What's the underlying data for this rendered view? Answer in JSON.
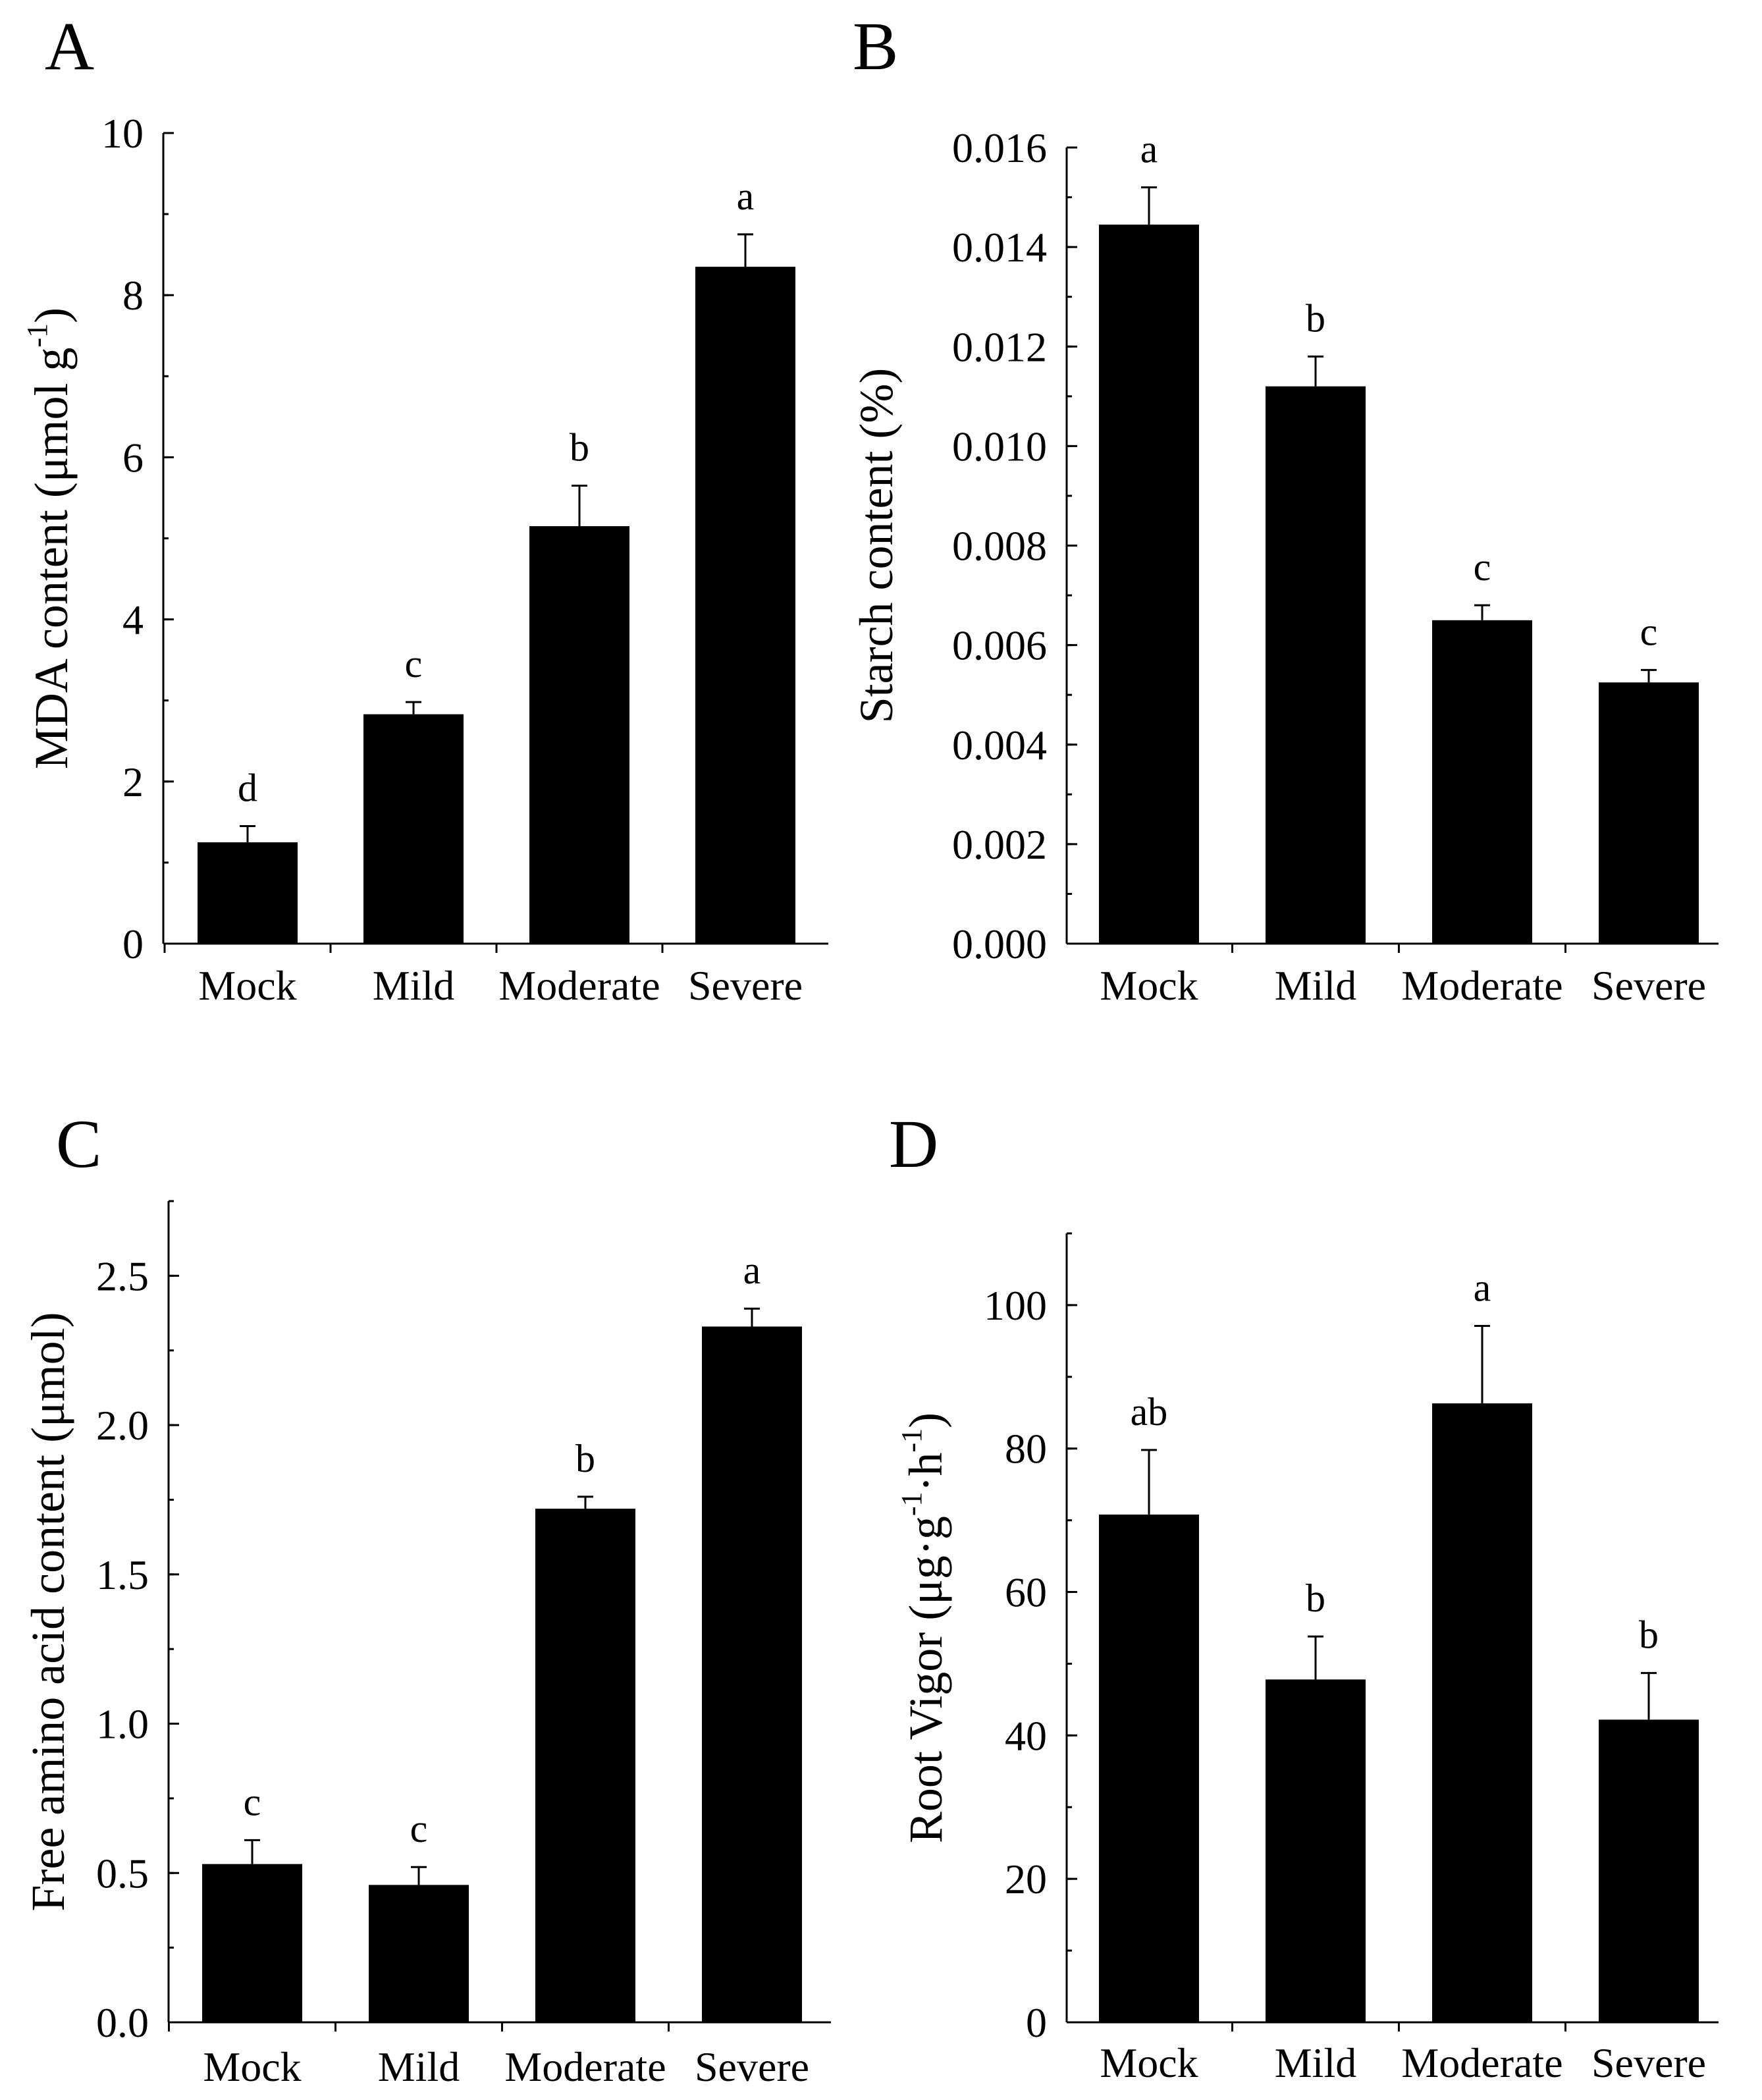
{
  "chart_data": [
    {
      "panel": "A",
      "type": "bar",
      "title": "",
      "categories": [
        "Mock",
        "Mild",
        "Moderate",
        "Severe"
      ],
      "values": [
        1.25,
        2.83,
        5.15,
        8.35
      ],
      "errors": [
        0.2,
        0.15,
        0.5,
        0.4
      ],
      "significance": [
        "d",
        "c",
        "b",
        "a"
      ],
      "ylabel_main": "MDA content (μmol g",
      "ylabel_sup": "-1",
      "ylabel_end": ")",
      "ylim": [
        0,
        10
      ],
      "yticks": [
        0,
        2,
        4,
        6,
        8,
        10
      ],
      "ytick_labels": [
        "0",
        "2",
        "4",
        "6",
        "8",
        "10"
      ],
      "minor_step": 1
    },
    {
      "panel": "B",
      "type": "bar",
      "title": "",
      "categories": [
        "Mock",
        "Mild",
        "Moderate",
        "Severe"
      ],
      "values": [
        0.01445,
        0.0112,
        0.0065,
        0.00525
      ],
      "errors": [
        0.00075,
        0.0006,
        0.0003,
        0.00025
      ],
      "significance": [
        "a",
        "b",
        "c",
        "c"
      ],
      "ylabel_main": "Starch content (%)",
      "ylabel_sup": "",
      "ylabel_end": "",
      "ylim": [
        0,
        0.016
      ],
      "yticks": [
        0,
        0.002,
        0.004,
        0.006,
        0.008,
        0.01,
        0.012,
        0.014,
        0.016
      ],
      "ytick_labels": [
        "0.000",
        "0.002",
        "0.004",
        "0.006",
        "0.008",
        "0.010",
        "0.012",
        "0.014",
        "0.016"
      ],
      "minor_step": 0.001
    },
    {
      "panel": "C",
      "type": "bar",
      "title": "",
      "categories": [
        "Mock",
        "Mild",
        "Moderate",
        "Severe"
      ],
      "values": [
        0.53,
        0.46,
        1.72,
        2.33
      ],
      "errors": [
        0.08,
        0.06,
        0.04,
        0.06
      ],
      "significance": [
        "c",
        "c",
        "b",
        "a"
      ],
      "ylabel_main": "Free amino acid content (μmol)",
      "ylabel_sup": "",
      "ylabel_end": "",
      "ylim": [
        0,
        2.75
      ],
      "yticks": [
        0,
        0.5,
        1,
        1.5,
        2,
        2.5
      ],
      "ytick_labels": [
        "0.0",
        "0.5",
        "1.0",
        "1.5",
        "2.0",
        "2.5"
      ],
      "minor_step": 0.25
    },
    {
      "panel": "D",
      "type": "bar",
      "title": "",
      "categories": [
        "Mock",
        "Mild",
        "Moderate",
        "Severe"
      ],
      "values": [
        70.8,
        47.8,
        86.3,
        42.2
      ],
      "errors": [
        9.0,
        6.0,
        10.8,
        6.5
      ],
      "significance": [
        "ab",
        "b",
        "a",
        "b"
      ],
      "ylabel_main": "Root Vigor (μg·g",
      "ylabel_sup": "-1",
      "ylabel_mid": "·h",
      "ylabel_sup2": "-1",
      "ylabel_end": ")",
      "ylim": [
        0,
        110
      ],
      "yticks": [
        0,
        20,
        40,
        60,
        80,
        100
      ],
      "ytick_labels": [
        "0",
        "20",
        "40",
        "60",
        "80",
        "100"
      ],
      "minor_step": 10
    }
  ]
}
